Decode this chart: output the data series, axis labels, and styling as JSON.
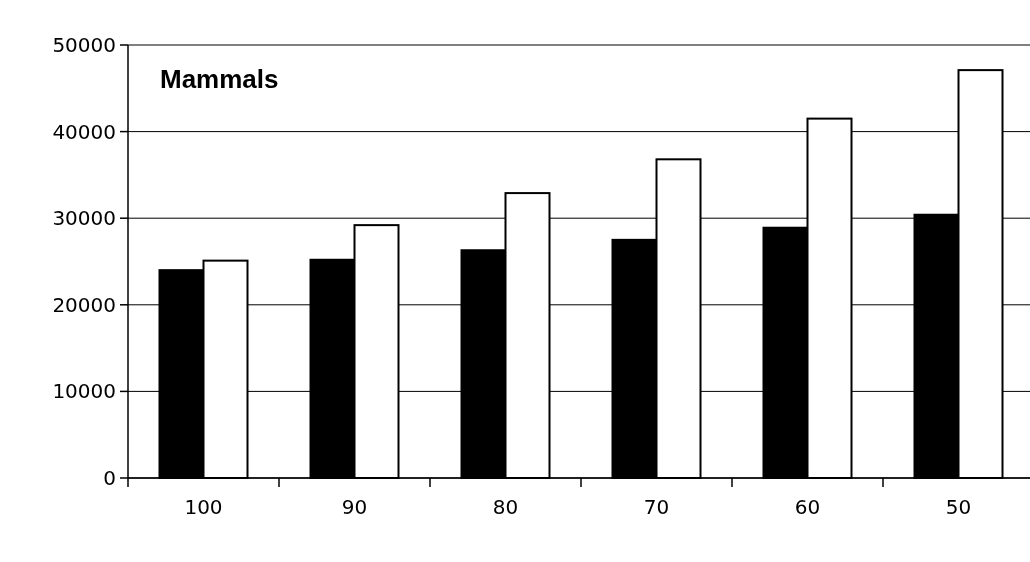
{
  "chart_data": {
    "type": "bar",
    "title": "Mammals",
    "categories": [
      "100",
      "90",
      "80",
      "70",
      "60",
      "50"
    ],
    "series": [
      {
        "color": "#000000",
        "values": [
          24000,
          25200,
          26300,
          27500,
          28900,
          30400
        ]
      },
      {
        "color": "#ffffff",
        "values": [
          25100,
          29200,
          32900,
          36800,
          41500,
          47100
        ]
      }
    ],
    "ylim": [
      0,
      50000
    ],
    "yticks": [
      0,
      10000,
      20000,
      30000,
      40000,
      50000
    ],
    "grid": "y"
  }
}
